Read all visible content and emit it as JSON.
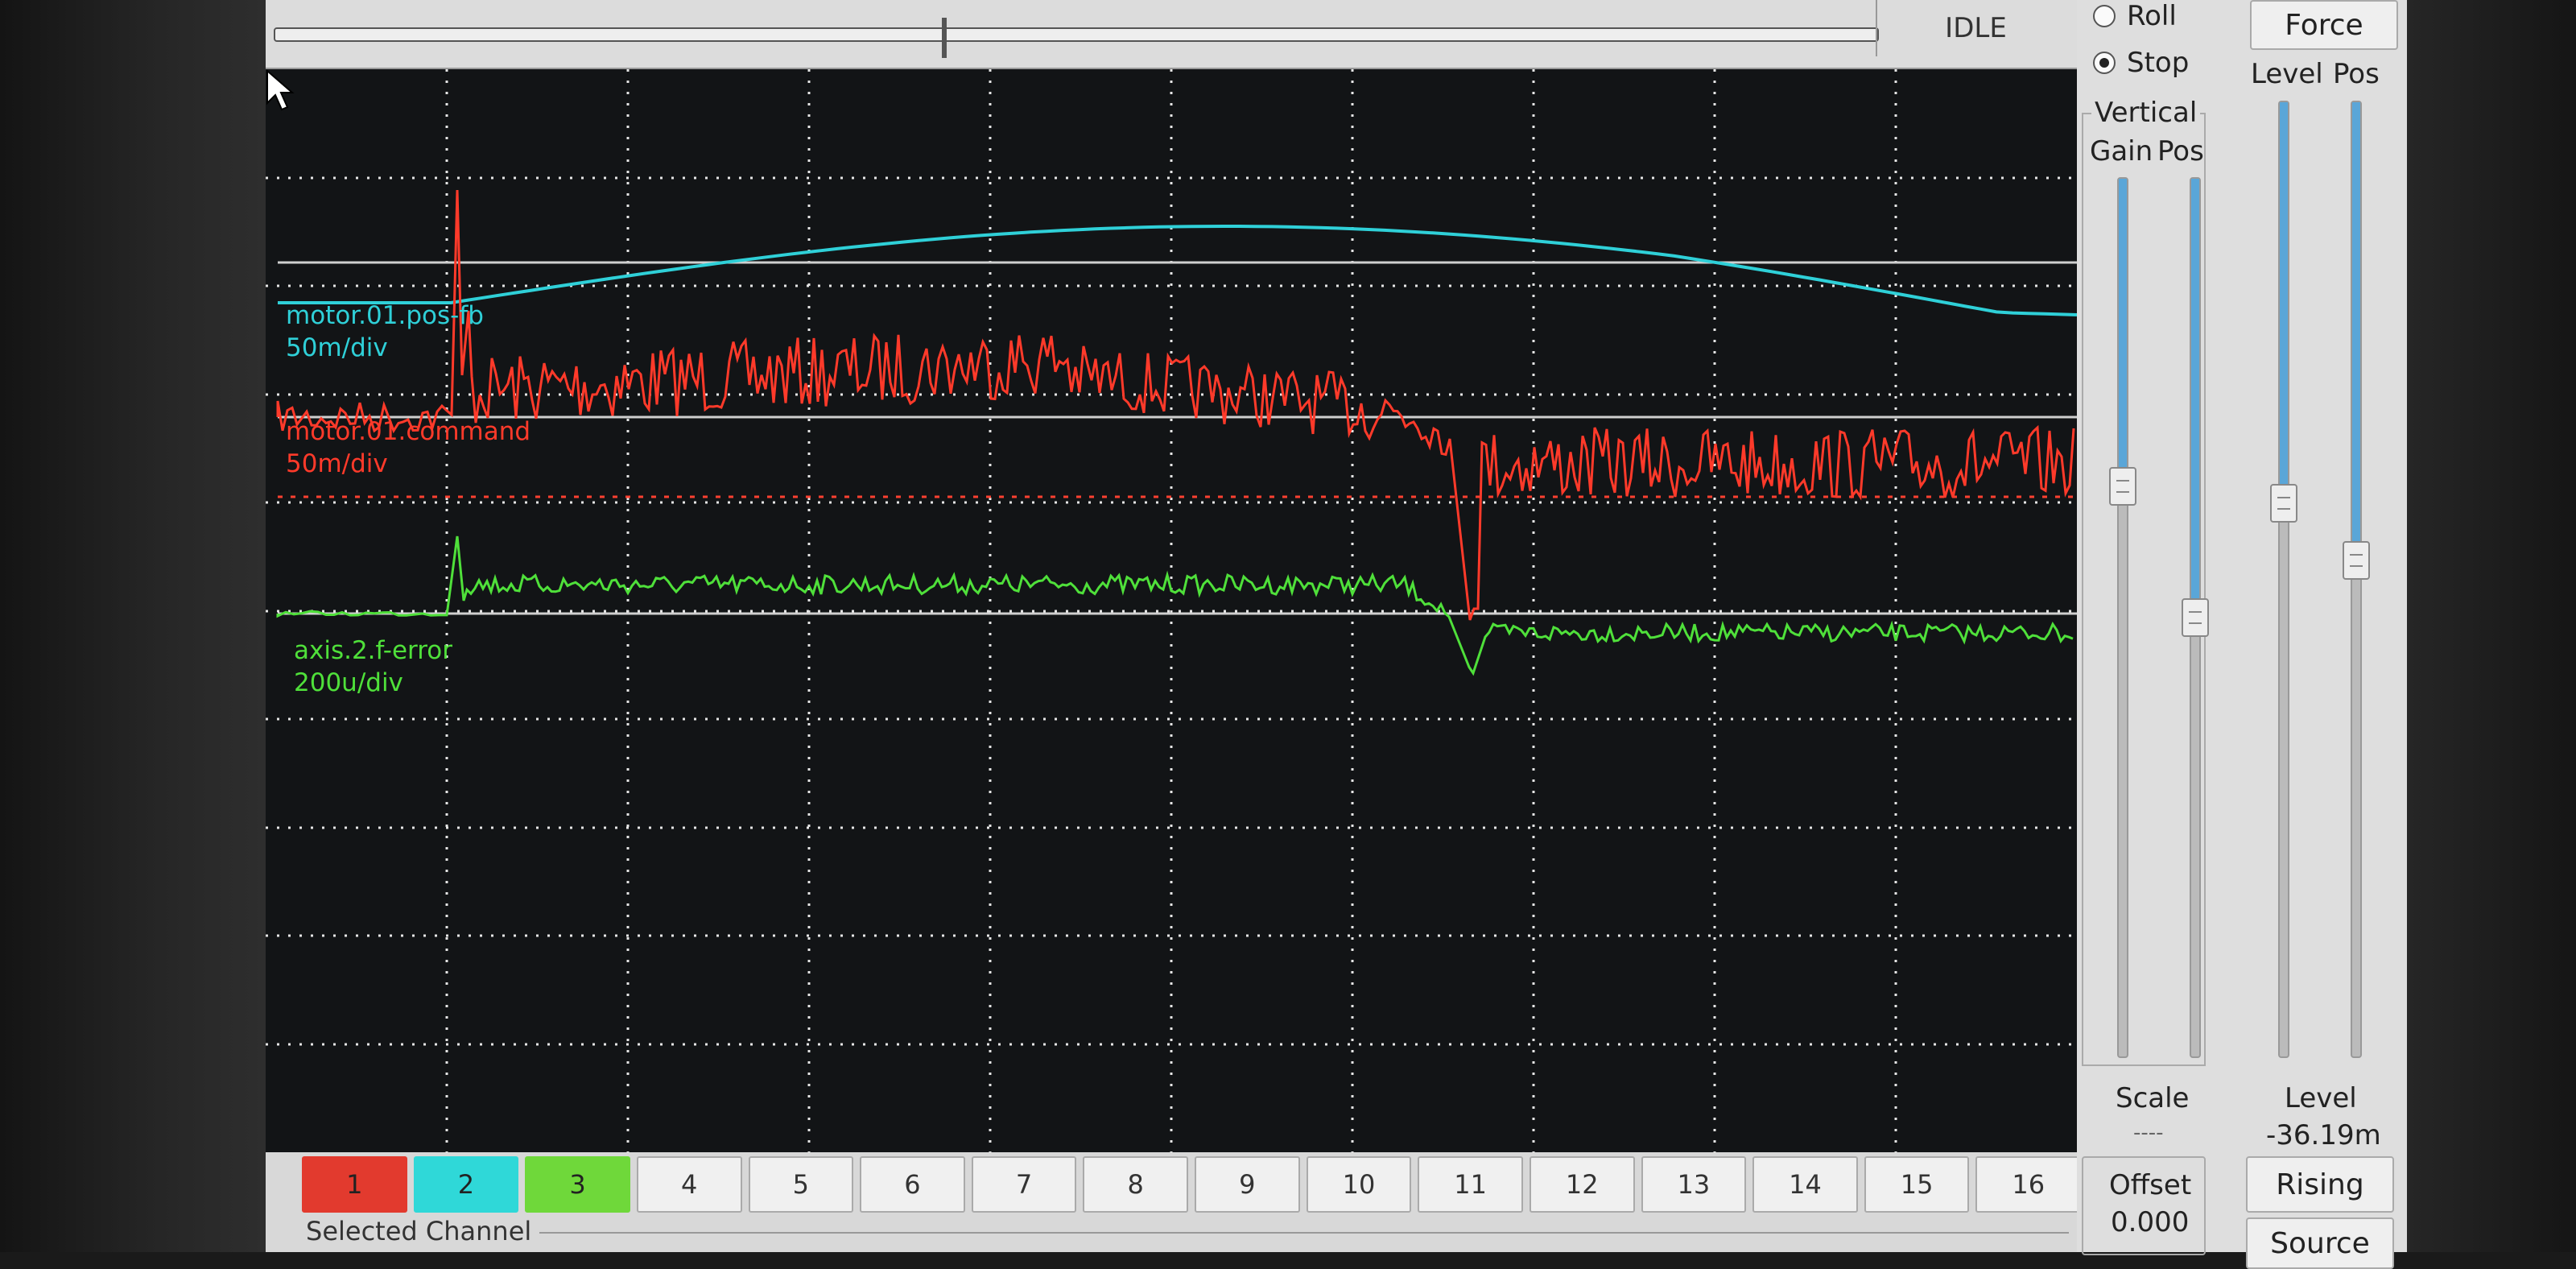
{
  "status": {
    "state": "IDLE"
  },
  "run_mode": {
    "options": [
      "Roll",
      "Stop"
    ],
    "selected": "Stop"
  },
  "vertical": {
    "title": "Vertical",
    "gain_label": "Gain",
    "pos_label": "Pos",
    "gain_level": 0.35,
    "pos_level": 0.5,
    "scale_label": "Scale",
    "scale_value": "----",
    "offset_label": "Offset",
    "offset_value": "0.000"
  },
  "trigger": {
    "force_label": "Force",
    "level_label": "Level",
    "pos_label": "Pos",
    "level_slider": 0.42,
    "pos_slider": 0.48,
    "level_caption": "Level",
    "level_value": "-36.19m",
    "edge_label": "Rising",
    "source_label": "Source"
  },
  "traces": [
    {
      "name": "motor.01.pos-fb",
      "scale": "50m/div",
      "color": "#2fd0d8"
    },
    {
      "name": "motor.01.command",
      "scale": "50m/div",
      "color": "#ff3a2a"
    },
    {
      "name": "axis.2.f-error",
      "scale": "200u/div",
      "color": "#4fe03a"
    }
  ],
  "channels": {
    "labels": [
      "1",
      "2",
      "3",
      "4",
      "5",
      "6",
      "7",
      "8",
      "9",
      "10",
      "11",
      "12",
      "13",
      "14",
      "15",
      "16"
    ],
    "colors": [
      "#e23a2e",
      "#2fd8d8",
      "#6fd83a"
    ],
    "selected_label": "Selected Channel"
  },
  "display": {
    "h_divisions": 10,
    "v_divisions": 10
  }
}
